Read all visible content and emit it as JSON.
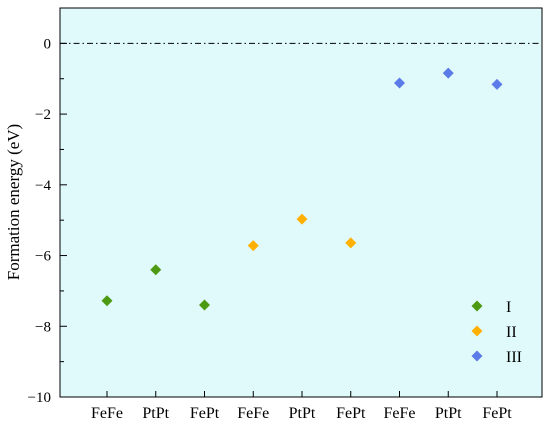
{
  "chart_data": {
    "type": "scatter",
    "ylabel": "Formation energy (eV)",
    "xlabel": "",
    "ylim": [
      -10,
      1
    ],
    "yticks": [
      0,
      -2,
      -4,
      -6,
      -8,
      -10
    ],
    "grid": false,
    "reference_line": {
      "y": 0,
      "style": "dash-dot"
    },
    "background_color": "#e0fafb",
    "categories": [
      "FeFe",
      "PtPt",
      "FePt",
      "FeFe",
      "PtPt",
      "FePt",
      "FeFe",
      "PtPt",
      "FePt"
    ],
    "series": [
      {
        "name": "I",
        "color": "#4c9a12",
        "marker": "diamond",
        "x_index": [
          0,
          1,
          2
        ],
        "values": [
          -7.28,
          -6.4,
          -7.4
        ]
      },
      {
        "name": "II",
        "color": "#ffb000",
        "marker": "diamond",
        "x_index": [
          3,
          4,
          5
        ],
        "values": [
          -5.72,
          -4.97,
          -5.64
        ]
      },
      {
        "name": "III",
        "color": "#5b7be8",
        "marker": "diamond",
        "x_index": [
          6,
          7,
          8
        ],
        "values": [
          -1.12,
          -0.84,
          -1.16
        ]
      }
    ],
    "legend": {
      "placement": "bottom-right"
    }
  }
}
